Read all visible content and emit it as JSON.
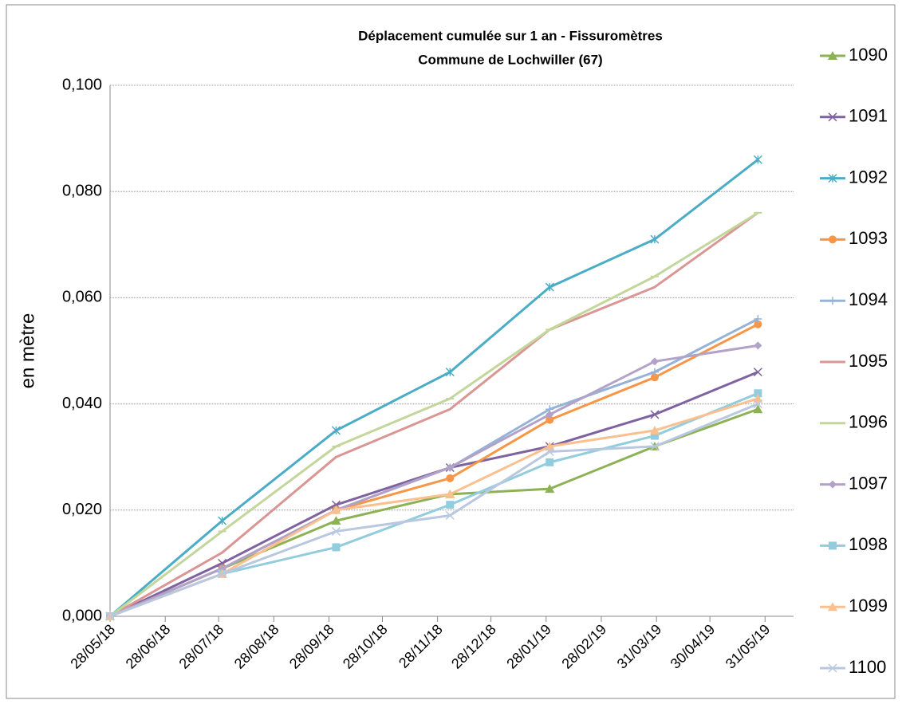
{
  "chart_data": {
    "type": "line",
    "title": "Déplacement cumulée sur 1 an - Fissuromètres",
    "subtitle": "Commune de Lochwiller (67)",
    "y_label": "en mètre",
    "x": [
      "28/05/18",
      "30/07/18",
      "02/10/18",
      "05/12/18",
      "30/01/19",
      "30/03/19",
      "27/05/19"
    ],
    "xlim": [
      "28/05/18",
      "16/06/19"
    ],
    "xticks": [
      "28/05/18",
      "28/06/18",
      "28/07/18",
      "28/08/18",
      "28/09/18",
      "28/10/18",
      "28/11/18",
      "28/12/18",
      "28/01/19",
      "28/02/19",
      "31/03/19",
      "30/04/19",
      "31/05/19"
    ],
    "ylim": [
      0,
      0.1
    ],
    "yticks": [
      {
        "value": 0,
        "label": "0,000"
      },
      {
        "value": 0.02,
        "label": "0,020"
      },
      {
        "value": 0.04,
        "label": "0,040"
      },
      {
        "value": 0.06,
        "label": "0,060"
      },
      {
        "value": 0.08,
        "label": "0,080"
      },
      {
        "value": 0.1,
        "label": "0,100"
      }
    ],
    "grid": true,
    "legend": "right",
    "series": [
      {
        "name": "1090",
        "color": "#8db255",
        "marker": "triangle",
        "values": [
          0,
          0.009,
          0.018,
          0.023,
          0.024,
          0.032,
          0.039
        ]
      },
      {
        "name": "1091",
        "color": "#7e63a0",
        "marker": "x",
        "values": [
          0,
          0.01,
          0.021,
          0.028,
          0.032,
          0.038,
          0.046
        ]
      },
      {
        "name": "1092",
        "color": "#4bacc6",
        "marker": "star",
        "values": [
          0,
          0.018,
          0.035,
          0.046,
          0.062,
          0.071,
          0.086
        ]
      },
      {
        "name": "1093",
        "color": "#f79646",
        "marker": "circle",
        "values": [
          0,
          0.009,
          0.02,
          0.026,
          0.037,
          0.045,
          0.055
        ]
      },
      {
        "name": "1094",
        "color": "#95b3d7",
        "marker": "plus",
        "values": [
          0,
          0.009,
          0.02,
          0.028,
          0.039,
          0.046,
          0.056
        ]
      },
      {
        "name": "1095",
        "color": "#d99694",
        "marker": "none",
        "values": [
          0,
          0.012,
          0.03,
          0.039,
          0.054,
          0.062,
          0.076
        ]
      },
      {
        "name": "1096",
        "color": "#c3d69b",
        "marker": "dash",
        "values": [
          0,
          0.016,
          0.032,
          0.041,
          0.054,
          0.064,
          0.076
        ]
      },
      {
        "name": "1097",
        "color": "#b3a2c7",
        "marker": "diamond",
        "values": [
          0,
          0.009,
          0.02,
          0.028,
          0.038,
          0.048,
          0.051
        ]
      },
      {
        "name": "1098",
        "color": "#93cddd",
        "marker": "square",
        "values": [
          0,
          0.008,
          0.013,
          0.021,
          0.029,
          0.034,
          0.042
        ]
      },
      {
        "name": "1099",
        "color": "#fac090",
        "marker": "triangle",
        "values": [
          0,
          0.008,
          0.02,
          0.023,
          0.032,
          0.035,
          0.041
        ]
      },
      {
        "name": "1100",
        "color": "#b9c8e0",
        "marker": "x",
        "values": [
          0,
          0.008,
          0.016,
          0.019,
          0.031,
          0.032,
          0.04
        ]
      }
    ]
  }
}
